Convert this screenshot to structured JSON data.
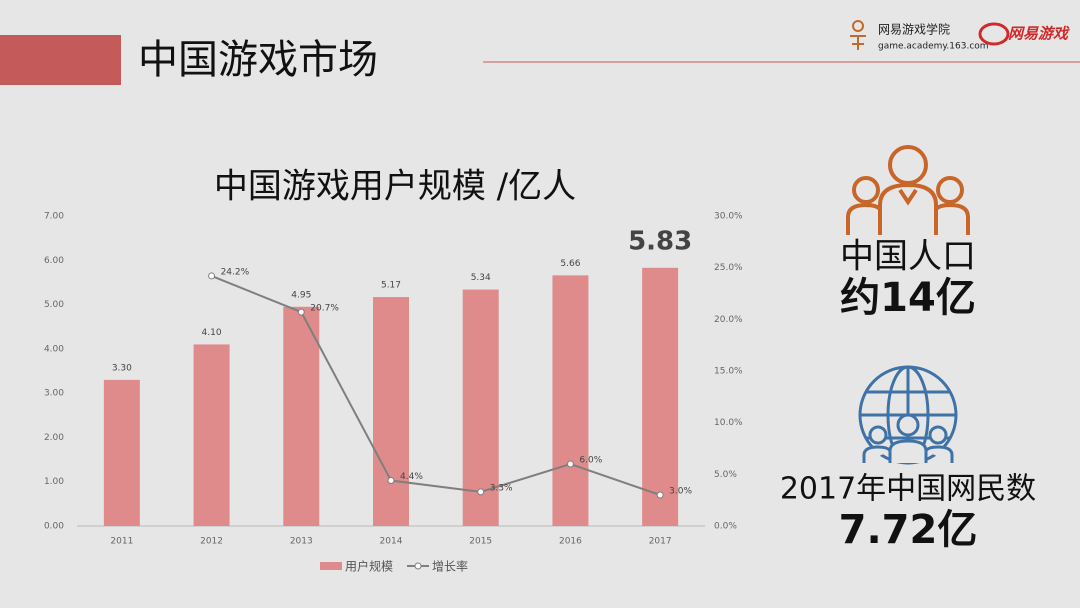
{
  "header": {
    "title": "中国游戏市场",
    "logo_name": "网易游戏学院",
    "logo_url": "game.academy.163.com",
    "brand": "网易游戏"
  },
  "chart_data": {
    "type": "bar",
    "title": "中国游戏用户规模 /亿人",
    "categories": [
      "2011",
      "2012",
      "2013",
      "2014",
      "2015",
      "2016",
      "2017"
    ],
    "series": [
      {
        "name": "用户规模",
        "type": "bar",
        "color": "#e08b8b",
        "values": [
          3.3,
          4.1,
          4.95,
          5.17,
          5.34,
          5.66,
          5.83
        ],
        "value_labels": [
          "3.30",
          "4.10",
          "4.95",
          "5.17",
          "5.34",
          "5.66",
          "5.83"
        ]
      },
      {
        "name": "增长率",
        "type": "line",
        "axis": "y2",
        "color": "#7f7f7f",
        "values": [
          null,
          24.2,
          20.7,
          4.4,
          3.3,
          6.0,
          3.0
        ],
        "value_labels": [
          null,
          "24.2%",
          "20.7%",
          "4.4%",
          "3.3%",
          "6.0%",
          "3.0%"
        ]
      }
    ],
    "ylim": [
      0,
      7
    ],
    "yticks": [
      {
        "value": 0,
        "label": "0.00"
      },
      {
        "value": 1,
        "label": "1.00"
      },
      {
        "value": 2,
        "label": "2.00"
      },
      {
        "value": 3,
        "label": "3.00"
      },
      {
        "value": 4,
        "label": "4.00"
      },
      {
        "value": 5,
        "label": "5.00"
      },
      {
        "value": 6,
        "label": "6.00"
      },
      {
        "value": 7,
        "label": "7.00"
      }
    ],
    "y2lim": [
      0,
      30
    ],
    "y2ticks": [
      {
        "value": 0,
        "label": "0.0%"
      },
      {
        "value": 5,
        "label": "5.0%"
      },
      {
        "value": 10,
        "label": "10.0%"
      },
      {
        "value": 15,
        "label": "15.0%"
      },
      {
        "value": 20,
        "label": "20.0%"
      },
      {
        "value": 25,
        "label": "25.0%"
      },
      {
        "value": 30,
        "label": "30.0%"
      }
    ],
    "grid": false,
    "legend": "bottom"
  },
  "stats": [
    {
      "label": "中国人口",
      "value": "约14亿"
    },
    {
      "label": "2017年中国网民数",
      "value": "7.72亿"
    }
  ]
}
